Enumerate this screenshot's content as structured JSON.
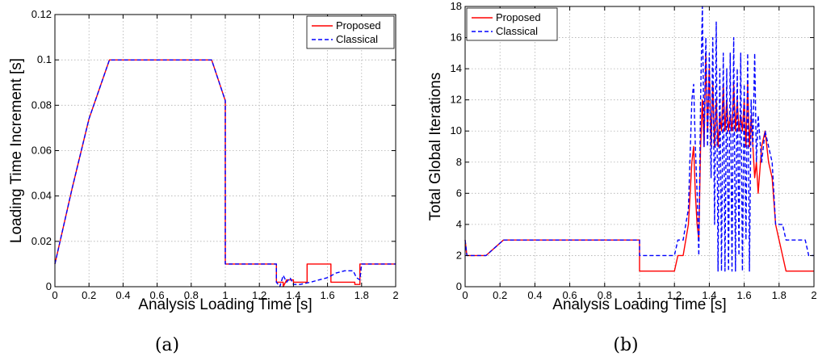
{
  "chart_data": [
    {
      "id": "a",
      "type": "line",
      "caption": "(a)",
      "xlabel": "Analysis Loading Time [s]",
      "ylabel": "Loading Time Increment [s]",
      "xlim": [
        0,
        2
      ],
      "ylim": [
        0,
        0.12
      ],
      "xticks": [
        "0",
        "0.2",
        "0.4",
        "0.6",
        "0.8",
        "1",
        "1.2",
        "1.4",
        "1.6",
        "1.8",
        "2"
      ],
      "yticks": [
        "0",
        "0.02",
        "0.04",
        "0.06",
        "0.08",
        "0.1",
        "0.12"
      ],
      "grid": true,
      "legend": "top-right",
      "series": [
        {
          "name": "Proposed",
          "color": "#ff0000",
          "dash": "solid",
          "points": [
            [
              0,
              0.01
            ],
            [
              0.1,
              0.043
            ],
            [
              0.2,
              0.074
            ],
            [
              0.32,
              0.1
            ],
            [
              0.92,
              0.1
            ],
            [
              1.0,
              0.082
            ],
            [
              1.0,
              0.01
            ],
            [
              1.3,
              0.01
            ],
            [
              1.3,
              0.002
            ],
            [
              1.34,
              0.002
            ],
            [
              1.34,
              0.0
            ],
            [
              1.36,
              0.003
            ],
            [
              1.4,
              0.003
            ],
            [
              1.4,
              0.002
            ],
            [
              1.48,
              0.002
            ],
            [
              1.48,
              0.01
            ],
            [
              1.62,
              0.01
            ],
            [
              1.62,
              0.002
            ],
            [
              1.76,
              0.002
            ],
            [
              1.76,
              0.001
            ],
            [
              1.79,
              0.001
            ],
            [
              1.79,
              0.01
            ],
            [
              2.0,
              0.01
            ]
          ]
        },
        {
          "name": "Classical",
          "color": "#0000ff",
          "dash": "dashed",
          "points": [
            [
              0,
              0.01
            ],
            [
              0.1,
              0.043
            ],
            [
              0.2,
              0.074
            ],
            [
              0.32,
              0.1
            ],
            [
              0.92,
              0.1
            ],
            [
              1.0,
              0.082
            ],
            [
              1.0,
              0.01
            ],
            [
              1.3,
              0.01
            ],
            [
              1.3,
              0.002
            ],
            [
              1.32,
              0.0
            ],
            [
              1.34,
              0.005
            ],
            [
              1.36,
              0.002
            ],
            [
              1.38,
              0.004
            ],
            [
              1.4,
              0.001
            ],
            [
              1.44,
              0.001
            ],
            [
              1.5,
              0.002
            ],
            [
              1.55,
              0.003
            ],
            [
              1.6,
              0.004
            ],
            [
              1.65,
              0.006
            ],
            [
              1.7,
              0.007
            ],
            [
              1.75,
              0.007
            ],
            [
              1.77,
              0.004
            ],
            [
              1.79,
              0.003
            ],
            [
              1.8,
              0.01
            ],
            [
              2.0,
              0.01
            ]
          ]
        }
      ]
    },
    {
      "id": "b",
      "type": "line",
      "caption": "(b)",
      "xlabel": "Analysis Loading Time [s]",
      "ylabel": "Total Global Iterations",
      "xlim": [
        0,
        2
      ],
      "ylim": [
        0,
        18
      ],
      "xticks": [
        "0",
        "0.2",
        "0.4",
        "0.6",
        "0.8",
        "1",
        "1.2",
        "1.4",
        "1.6",
        "1.8",
        "2"
      ],
      "yticks": [
        "0",
        "2",
        "4",
        "6",
        "8",
        "10",
        "12",
        "14",
        "16",
        "18"
      ],
      "grid": true,
      "legend": "top-left",
      "series": [
        {
          "name": "Proposed",
          "color": "#ff0000",
          "dash": "solid",
          "points": [
            [
              0,
              3
            ],
            [
              0.01,
              2
            ],
            [
              0.12,
              2
            ],
            [
              0.22,
              3
            ],
            [
              1.0,
              3
            ],
            [
              1.0,
              1
            ],
            [
              1.2,
              1
            ],
            [
              1.22,
              2
            ],
            [
              1.25,
              2
            ],
            [
              1.28,
              4
            ],
            [
              1.3,
              8
            ],
            [
              1.31,
              9
            ],
            [
              1.32,
              6
            ],
            [
              1.33,
              4
            ],
            [
              1.34,
              3
            ],
            [
              1.35,
              9
            ],
            [
              1.36,
              12
            ],
            [
              1.37,
              9
            ],
            [
              1.38,
              15
            ],
            [
              1.39,
              10
            ],
            [
              1.4,
              14
            ],
            [
              1.41,
              9
            ],
            [
              1.42,
              13
            ],
            [
              1.43,
              9
            ],
            [
              1.44,
              12
            ],
            [
              1.45,
              9
            ],
            [
              1.46,
              11
            ],
            [
              1.47,
              10
            ],
            [
              1.48,
              13
            ],
            [
              1.49,
              10
            ],
            [
              1.5,
              12
            ],
            [
              1.51,
              10
            ],
            [
              1.52,
              11
            ],
            [
              1.53,
              10
            ],
            [
              1.54,
              13
            ],
            [
              1.55,
              10
            ],
            [
              1.56,
              12
            ],
            [
              1.57,
              10
            ],
            [
              1.58,
              11
            ],
            [
              1.59,
              10
            ],
            [
              1.6,
              12
            ],
            [
              1.61,
              9
            ],
            [
              1.62,
              13
            ],
            [
              1.63,
              9
            ],
            [
              1.64,
              11
            ],
            [
              1.65,
              9
            ],
            [
              1.66,
              7
            ],
            [
              1.67,
              8
            ],
            [
              1.68,
              6
            ],
            [
              1.7,
              9
            ],
            [
              1.72,
              10
            ],
            [
              1.74,
              8
            ],
            [
              1.76,
              7
            ],
            [
              1.78,
              4
            ],
            [
              1.8,
              3
            ],
            [
              1.82,
              2
            ],
            [
              1.84,
              1
            ],
            [
              2.0,
              1
            ]
          ]
        },
        {
          "name": "Classical",
          "color": "#0000ff",
          "dash": "dashed",
          "points": [
            [
              0,
              3
            ],
            [
              0.01,
              2
            ],
            [
              0.12,
              2
            ],
            [
              0.22,
              3
            ],
            [
              1.0,
              3
            ],
            [
              1.0,
              2
            ],
            [
              1.2,
              2
            ],
            [
              1.22,
              3
            ],
            [
              1.25,
              3
            ],
            [
              1.28,
              5
            ],
            [
              1.3,
              12
            ],
            [
              1.31,
              13
            ],
            [
              1.32,
              9
            ],
            [
              1.33,
              6
            ],
            [
              1.34,
              2
            ],
            [
              1.35,
              12
            ],
            [
              1.36,
              18
            ],
            [
              1.37,
              9
            ],
            [
              1.38,
              16
            ],
            [
              1.39,
              9
            ],
            [
              1.4,
              15
            ],
            [
              1.41,
              7
            ],
            [
              1.42,
              16
            ],
            [
              1.43,
              4
            ],
            [
              1.44,
              17
            ],
            [
              1.45,
              1
            ],
            [
              1.46,
              14
            ],
            [
              1.47,
              1
            ],
            [
              1.48,
              15
            ],
            [
              1.49,
              1
            ],
            [
              1.5,
              14
            ],
            [
              1.51,
              1
            ],
            [
              1.52,
              15
            ],
            [
              1.53,
              1
            ],
            [
              1.54,
              16
            ],
            [
              1.55,
              1
            ],
            [
              1.56,
              14
            ],
            [
              1.57,
              2
            ],
            [
              1.58,
              15
            ],
            [
              1.59,
              1
            ],
            [
              1.6,
              13
            ],
            [
              1.61,
              3
            ],
            [
              1.62,
              15
            ],
            [
              1.63,
              1
            ],
            [
              1.64,
              12
            ],
            [
              1.65,
              9
            ],
            [
              1.66,
              15
            ],
            [
              1.67,
              8
            ],
            [
              1.68,
              11
            ],
            [
              1.7,
              8
            ],
            [
              1.72,
              10
            ],
            [
              1.74,
              9
            ],
            [
              1.76,
              8
            ],
            [
              1.78,
              4
            ],
            [
              1.82,
              4
            ],
            [
              1.84,
              3
            ],
            [
              1.95,
              3
            ],
            [
              1.97,
              2
            ],
            [
              2.0,
              2
            ]
          ]
        }
      ]
    }
  ]
}
